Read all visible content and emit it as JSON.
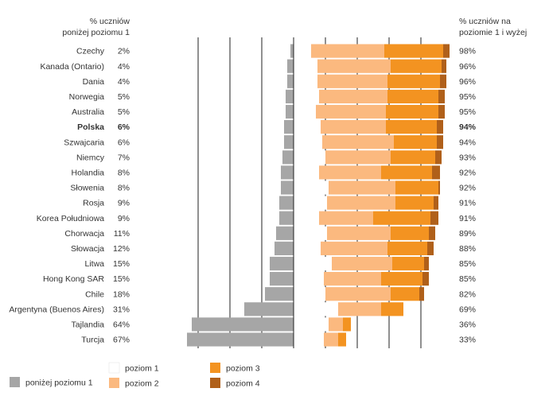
{
  "chart_data": {
    "type": "bar",
    "stacked": true,
    "diverging": true,
    "header_left": [
      "% uczniów",
      "poniżej poziomu 1"
    ],
    "header_right": [
      "% uczniów na",
      "poziomie 1 i wyżej"
    ],
    "highlight": "Polska",
    "xlim": [
      -70,
      100
    ],
    "x_gridlines": [
      -60,
      -40,
      -20,
      0,
      20,
      40,
      60,
      80
    ],
    "grid": true,
    "legend_position": "bottom",
    "colors": {
      "ponizej": "#a6a6a6",
      "poziom1": "#ffffff",
      "poziom2": "#fbb97f",
      "poziom3": "#f39321",
      "poziom4": "#b0601a"
    },
    "legend": {
      "ponizej": "poniżej poziomu 1",
      "poziom1": "poziom 1",
      "poziom2": "poziom 2",
      "poziom3": "poziom 3",
      "poziom4": "poziom 4"
    },
    "categories": [
      "Czechy",
      "Kanada (Ontario)",
      "Dania",
      "Norwegia",
      "Australia",
      "Polska",
      "Szwajcaria",
      "Niemcy",
      "Holandia",
      "Słowenia",
      "Rosja",
      "Korea Południowa",
      "Chorwacja",
      "Słowacja",
      "Litwa",
      "Hong Kong SAR",
      "Chile",
      "Argentyna (Buenos Aires)",
      "Tajlandia",
      "Turcja"
    ],
    "below_level1_labels": [
      "2%",
      "4%",
      "4%",
      "5%",
      "5%",
      "6%",
      "6%",
      "7%",
      "8%",
      "8%",
      "9%",
      "9%",
      "11%",
      "12%",
      "15%",
      "15%",
      "18%",
      "31%",
      "64%",
      "67%"
    ],
    "level1_plus_labels": [
      "98%",
      "96%",
      "96%",
      "95%",
      "95%",
      "94%",
      "94%",
      "93%",
      "92%",
      "92%",
      "91%",
      "91%",
      "89%",
      "88%",
      "85%",
      "85%",
      "82%",
      "69%",
      "36%",
      "33%"
    ],
    "series": [
      {
        "key": "ponizej",
        "name": "poniżej poziomu 1",
        "values": [
          2,
          4,
          4,
          5,
          5,
          6,
          6,
          7,
          8,
          8,
          9,
          9,
          11,
          12,
          15,
          15,
          18,
          31,
          64,
          67
        ]
      },
      {
        "key": "poziom1",
        "name": "poziom 1",
        "values": [
          11,
          15,
          15,
          16,
          14,
          17,
          18,
          20,
          16,
          22,
          21,
          16,
          21,
          17,
          24,
          19,
          20,
          28,
          22,
          19
        ]
      },
      {
        "key": "poziom2",
        "name": "poziom 2",
        "values": [
          46,
          46,
          44,
          43,
          44,
          41,
          45,
          41,
          39,
          42,
          43,
          34,
          40,
          42,
          38,
          36,
          41,
          27,
          9,
          9
        ]
      },
      {
        "key": "poziom3",
        "name": "poziom 3",
        "values": [
          37,
          32,
          33,
          32,
          33,
          32,
          27,
          28,
          32,
          27,
          24,
          36,
          24,
          25,
          20,
          26,
          18,
          14,
          5,
          5
        ]
      },
      {
        "key": "poziom4",
        "name": "poziom 4",
        "values": [
          4,
          3,
          4,
          4,
          4,
          4,
          4,
          4,
          5,
          1,
          3,
          5,
          4,
          4,
          3,
          4,
          3,
          0,
          0,
          0
        ]
      }
    ]
  }
}
